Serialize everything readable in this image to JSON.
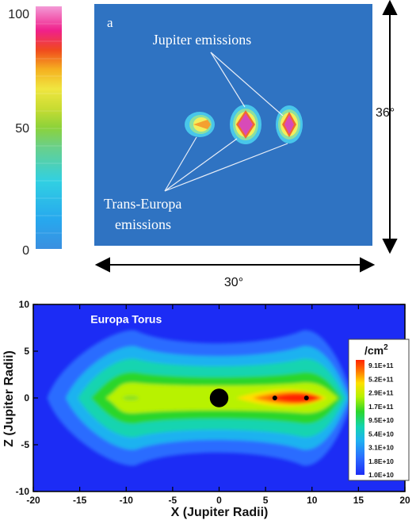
{
  "chart_data": [
    {
      "type": "heatmap",
      "panel_label": "a",
      "colorbar": {
        "ticks": [
          "100",
          "50",
          "0"
        ],
        "range": [
          0,
          100
        ]
      },
      "annotations": [
        "Jupiter emissions",
        "Trans-Europa emissions"
      ],
      "annotation_lines": [
        "Trans-Europa",
        "emissions"
      ],
      "width_label": "30°",
      "height_label": "36°",
      "sources": [
        {
          "name": "trans-europa",
          "peak": 72
        },
        {
          "name": "jupiter",
          "peak": 92
        },
        {
          "name": "jupiter",
          "peak": 85
        }
      ],
      "colors": {
        "background": "#2f73c2"
      }
    },
    {
      "type": "heatmap",
      "title": "Europa Torus",
      "xlabel": "X (Jupiter Radii)",
      "ylabel": "Z (Jupiter Radii)",
      "xlim": [
        -20,
        20
      ],
      "ylim": [
        -10,
        10
      ],
      "xticks": [
        "-20",
        "-15",
        "-10",
        "-5",
        "0",
        "5",
        "10",
        "15",
        "20"
      ],
      "yticks": [
        "10",
        "5",
        "0",
        "-5",
        "-10"
      ],
      "legend": {
        "unit": "/cm",
        "unit_sup": "2",
        "levels": [
          "9.1E+11",
          "5.2E+11",
          "2.9E+11",
          "1.7E+11",
          "9.5E+10",
          "5.4E+10",
          "3.1E+10",
          "1.8E+10",
          "1.0E+10"
        ],
        "colors": [
          "#ff2400",
          "#ff7a00",
          "#ffe000",
          "#b8f200",
          "#2bd62b",
          "#12d4b0",
          "#1eb2f0",
          "#2a6cff",
          "#1c2cf5"
        ]
      },
      "jupiter": {
        "x": 0,
        "z": 0,
        "radius": 1
      },
      "markers": [
        {
          "x": 6,
          "z": 0
        },
        {
          "x": 9.4,
          "z": 0
        }
      ],
      "colors": {
        "background": "#1c2cf5"
      }
    }
  ]
}
